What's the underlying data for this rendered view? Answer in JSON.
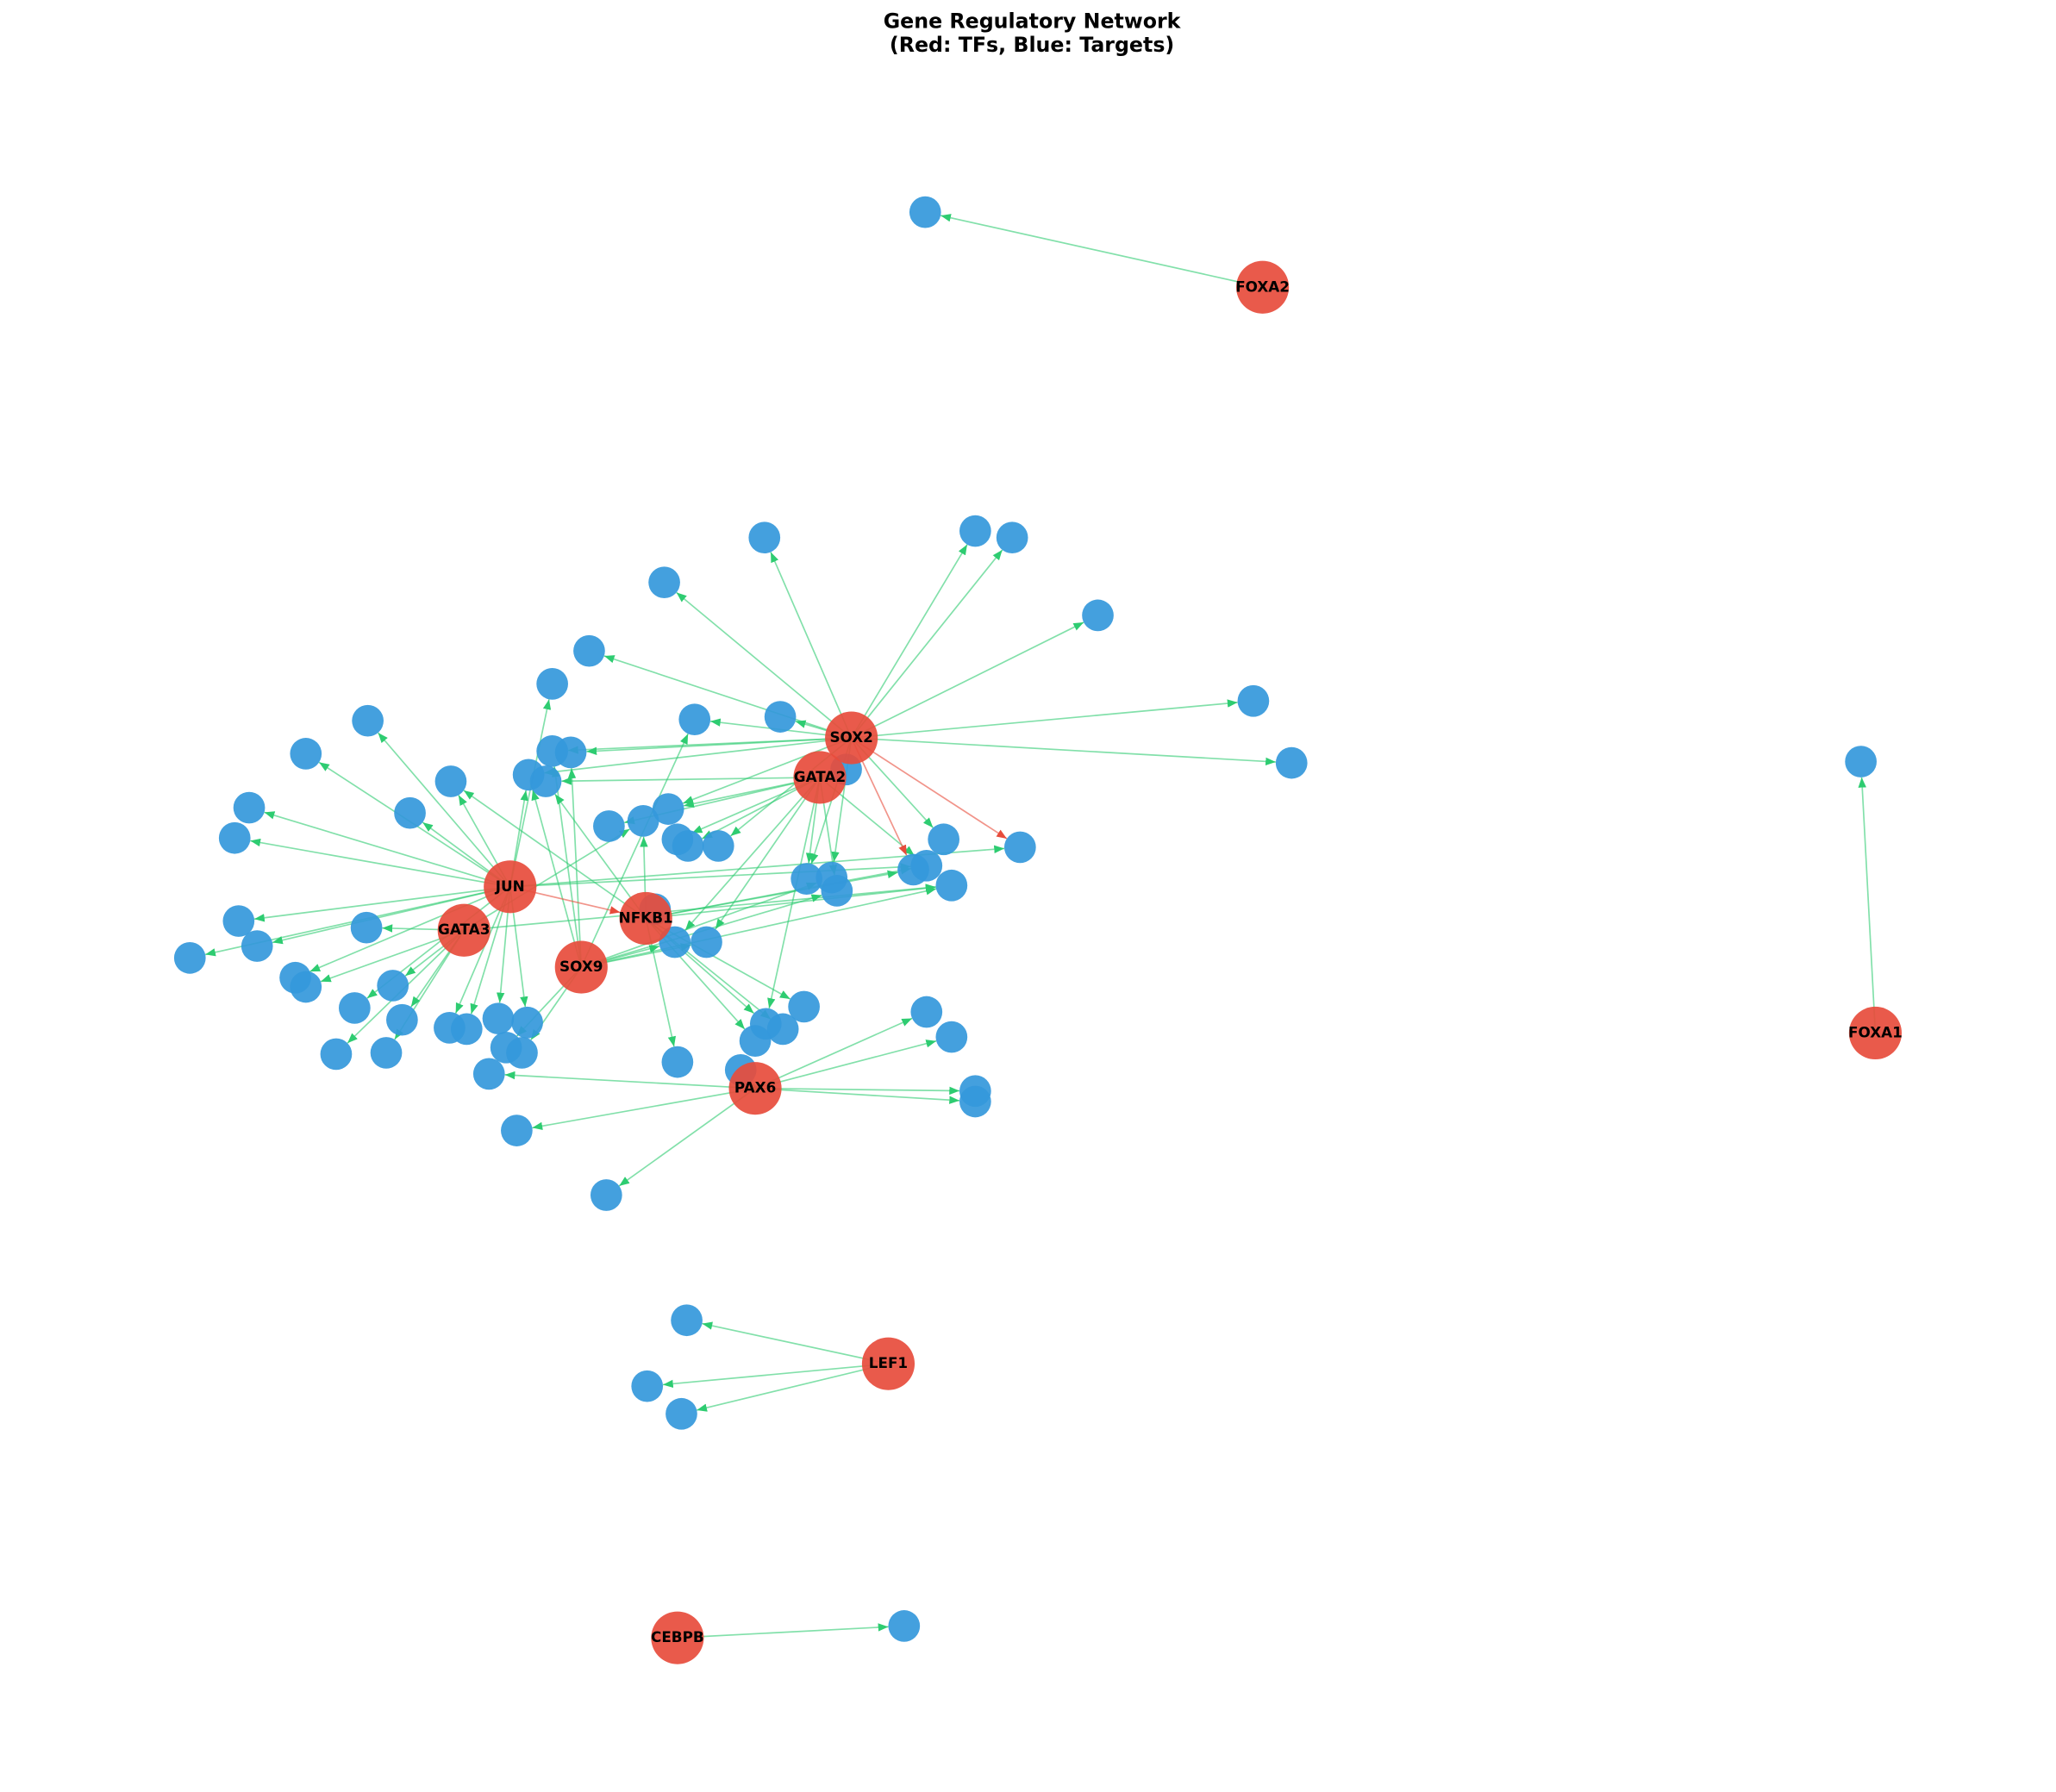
{
  "title": "Gene Regulatory Network",
  "subtitle": "(Red: TFs, Blue: Targets)",
  "nodes": [
    {
      "label": "SOX2"
    },
    {
      "label": "GATA2"
    },
    {
      "label": "JUN"
    },
    {
      "label": "GATA3"
    },
    {
      "label": "NFKB1"
    },
    {
      "label": "SOX9"
    },
    {
      "label": "PAX6"
    },
    {
      "label": "FOXA2"
    },
    {
      "label": "FOXA1"
    },
    {
      "label": "LEF1"
    },
    {
      "label": "CEBPB"
    }
  ]
}
